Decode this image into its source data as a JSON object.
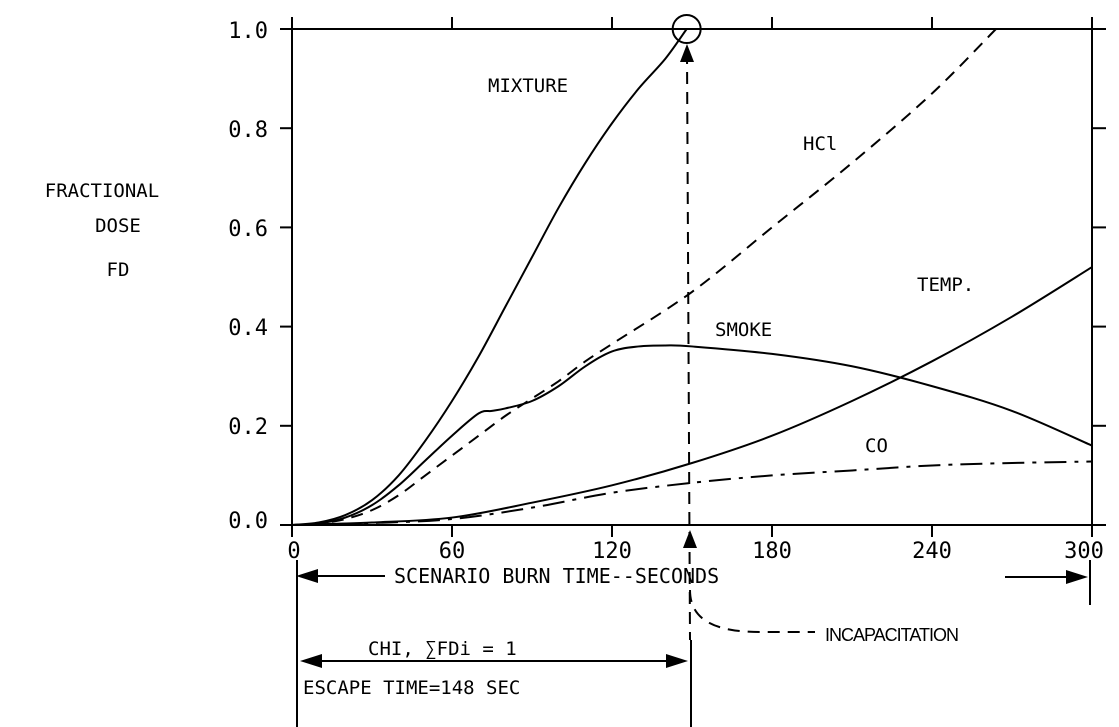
{
  "chart_data": {
    "type": "line",
    "ylabel_lines": [
      "FRACTIONAL",
      "DOSE",
      "FD"
    ],
    "xlabel": "SCENARIO BURN TIME--SECONDS",
    "xlim": [
      0,
      300
    ],
    "ylim": [
      0,
      1.0
    ],
    "x_ticks": [
      "0",
      "60",
      "120",
      "180",
      "240",
      "300"
    ],
    "y_ticks": [
      "0.0",
      "0.2",
      "0.4",
      "0.6",
      "0.8",
      "1.0"
    ],
    "series": [
      {
        "name": "MIXTURE",
        "style": "solid",
        "x": [
          0,
          10,
          20,
          30,
          40,
          50,
          60,
          70,
          80,
          90,
          100,
          110,
          120,
          130,
          140,
          148
        ],
        "y": [
          0,
          0.005,
          0.02,
          0.05,
          0.1,
          0.17,
          0.25,
          0.34,
          0.44,
          0.54,
          0.64,
          0.73,
          0.81,
          0.88,
          0.94,
          1.0
        ]
      },
      {
        "name": "HCl",
        "style": "dashed",
        "x": [
          0,
          10,
          20,
          30,
          40,
          50,
          60,
          70,
          80,
          90,
          100,
          110,
          120,
          150,
          180,
          210,
          240,
          264
        ],
        "y": [
          0,
          0.003,
          0.012,
          0.03,
          0.06,
          0.1,
          0.14,
          0.18,
          0.22,
          0.255,
          0.29,
          0.33,
          0.365,
          0.47,
          0.6,
          0.73,
          0.87,
          1.0
        ]
      },
      {
        "name": "SMOKE",
        "style": "solid",
        "x": [
          0,
          10,
          20,
          30,
          40,
          50,
          60,
          70,
          75,
          80,
          90,
          100,
          110,
          120,
          130,
          140,
          150,
          180,
          210,
          240,
          270,
          300
        ],
        "y": [
          0,
          0.003,
          0.015,
          0.04,
          0.08,
          0.13,
          0.18,
          0.225,
          0.23,
          0.235,
          0.25,
          0.28,
          0.32,
          0.35,
          0.36,
          0.362,
          0.36,
          0.345,
          0.32,
          0.28,
          0.23,
          0.16
        ]
      },
      {
        "name": "TEMP.",
        "style": "solid",
        "x": [
          0,
          30,
          60,
          90,
          120,
          150,
          180,
          210,
          240,
          270,
          300
        ],
        "y": [
          0,
          0.005,
          0.015,
          0.045,
          0.08,
          0.125,
          0.18,
          0.25,
          0.33,
          0.42,
          0.52
        ]
      },
      {
        "name": "CO",
        "style": "dashdot",
        "x": [
          0,
          30,
          60,
          90,
          120,
          150,
          180,
          210,
          240,
          270,
          300
        ],
        "y": [
          0,
          0.004,
          0.012,
          0.035,
          0.065,
          0.085,
          0.1,
          0.11,
          0.12,
          0.125,
          0.128
        ]
      }
    ],
    "marker": {
      "x": 148,
      "y": 1.0
    },
    "annotations": {
      "incapacitation": "INCAPACITATION",
      "chi_line": "CHI, ∑FDi = 1",
      "escape_line": "ESCAPE TIME=148 SEC"
    }
  }
}
